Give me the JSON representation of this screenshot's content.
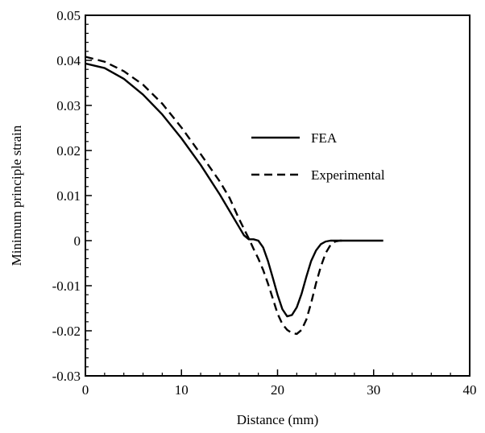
{
  "chart_data": {
    "type": "line",
    "title": "",
    "xlabel": "Distance (mm)",
    "ylabel": "Minimum principle strain",
    "xlim": [
      0,
      40
    ],
    "ylim": [
      -0.03,
      0.05
    ],
    "x_ticks": [
      0,
      10,
      20,
      30,
      40
    ],
    "x_tick_labels": [
      "0",
      "10",
      "20",
      "30",
      "40"
    ],
    "y_ticks": [
      0.05,
      0.04,
      0.03,
      0.02,
      0.01,
      0,
      -0.01,
      -0.02,
      -0.03
    ],
    "y_tick_labels": [
      "0.05",
      "0.04",
      "0.03",
      "0.02",
      "0.01",
      "0",
      "-0.01",
      "-0.02",
      "-0.03"
    ],
    "grid": false,
    "legend_position": "center-right",
    "series": [
      {
        "name": "FEA",
        "style": "solid",
        "color": "#000000",
        "x": [
          0,
          2,
          4,
          6,
          8,
          10,
          12,
          14,
          15,
          16,
          16.5,
          17,
          17.5,
          18,
          18.5,
          19,
          19.5,
          20,
          20.5,
          21,
          21.5,
          22,
          22.5,
          23,
          23.5,
          24,
          24.5,
          25,
          25.5,
          26,
          27,
          28,
          29,
          30,
          31
        ],
        "y": [
          0.0393,
          0.0383,
          0.0359,
          0.0324,
          0.028,
          0.0227,
          0.0168,
          0.0102,
          0.0066,
          0.003,
          0.0012,
          0.0003,
          0.0003,
          0,
          -0.0015,
          -0.0045,
          -0.0082,
          -0.012,
          -0.0152,
          -0.0168,
          -0.0165,
          -0.0148,
          -0.0118,
          -0.008,
          -0.0045,
          -0.0022,
          -0.0008,
          -0.0002,
          0,
          0,
          0,
          0,
          0,
          0,
          0
        ]
      },
      {
        "name": "Experimental",
        "style": "dashed",
        "color": "#000000",
        "x": [
          0,
          2,
          4,
          6,
          8,
          10,
          12,
          14,
          15,
          16,
          17,
          17.5,
          18,
          18.5,
          19,
          19.5,
          20,
          20.5,
          21,
          21.5,
          22,
          22.5,
          23,
          23.5,
          24,
          24.5,
          25,
          25.5,
          26,
          26.5,
          27
        ],
        "y": [
          0.0408,
          0.0397,
          0.0376,
          0.0346,
          0.0304,
          0.0251,
          0.0192,
          0.0131,
          0.0095,
          0.0048,
          0.0005,
          -0.0018,
          -0.004,
          -0.0065,
          -0.0095,
          -0.0128,
          -0.0162,
          -0.0185,
          -0.0198,
          -0.0205,
          -0.0207,
          -0.0198,
          -0.0175,
          -0.0138,
          -0.0095,
          -0.0058,
          -0.0028,
          -0.001,
          -0.0002,
          0,
          0
        ]
      }
    ]
  }
}
